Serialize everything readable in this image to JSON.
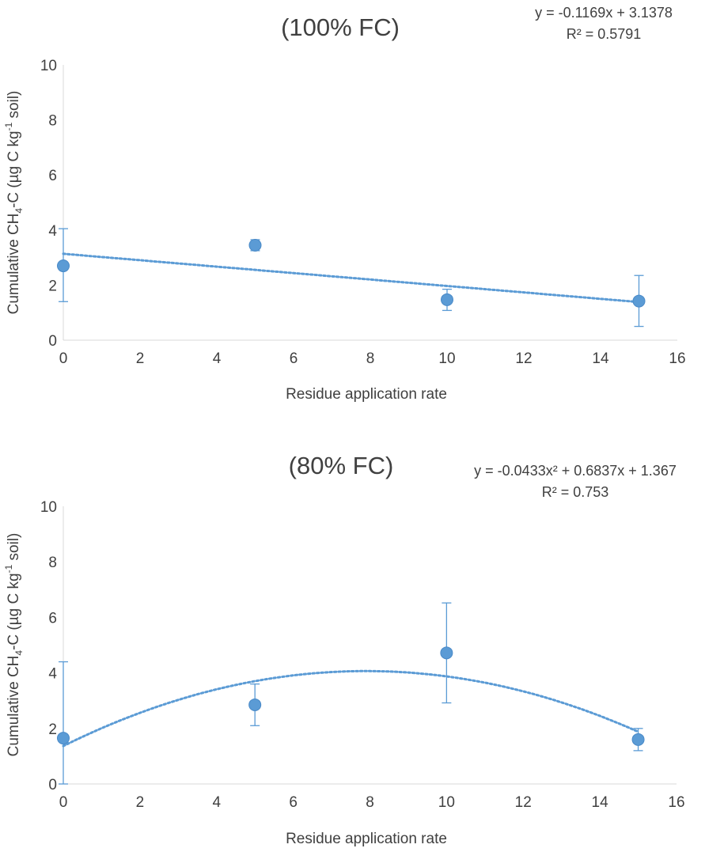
{
  "chart_data": [
    {
      "type": "scatter",
      "title": "(100% FC)",
      "xlabel": "Residue application rate",
      "ylabel_main": "Cumulative CH",
      "ylabel_sub": "4",
      "ylabel_rest": "-C (µg C kg",
      "ylabel_sup": "-1",
      "ylabel_end": " soil)",
      "xlim": [
        0,
        16
      ],
      "ylim": [
        0,
        10
      ],
      "xticks": [
        0,
        2,
        4,
        6,
        8,
        10,
        12,
        14,
        16
      ],
      "yticks": [
        0,
        2,
        4,
        6,
        8,
        10
      ],
      "grid": false,
      "color": "#5B9BD5",
      "points": [
        {
          "x": 0,
          "y": 2.7,
          "err_low": 1.4,
          "err_high": 4.05
        },
        {
          "x": 5,
          "y": 3.45,
          "err_low": 3.25,
          "err_high": 3.65
        },
        {
          "x": 10,
          "y": 1.47,
          "err_low": 1.08,
          "err_high": 1.85
        },
        {
          "x": 15,
          "y": 1.42,
          "err_low": 0.5,
          "err_high": 2.35
        }
      ],
      "trendline": {
        "type": "linear",
        "coefficients": [
          -0.1169,
          3.1378
        ],
        "x_range": [
          0,
          15
        ]
      },
      "equation": "y = -0.1169x + 3.1378",
      "r2_text": "R² = 0.5791"
    },
    {
      "type": "scatter",
      "title": "(80% FC)",
      "xlabel": "Residue application rate",
      "ylabel_main": "Cumulative CH",
      "ylabel_sub": "4",
      "ylabel_rest": "-C (µg C kg",
      "ylabel_sup": "-1",
      "ylabel_end": " soil)",
      "xlim": [
        0,
        16
      ],
      "ylim": [
        0,
        10
      ],
      "xticks": [
        0,
        2,
        4,
        6,
        8,
        10,
        12,
        14,
        16
      ],
      "yticks": [
        0,
        2,
        4,
        6,
        8,
        10
      ],
      "grid": false,
      "color": "#5B9BD5",
      "points": [
        {
          "x": 0,
          "y": 1.65,
          "err_low": 0,
          "err_high": 4.4
        },
        {
          "x": 5,
          "y": 2.85,
          "err_low": 2.1,
          "err_high": 3.6
        },
        {
          "x": 10,
          "y": 4.72,
          "err_low": 2.92,
          "err_high": 6.52
        },
        {
          "x": 15,
          "y": 1.6,
          "err_low": 1.2,
          "err_high": 2.0
        }
      ],
      "trendline": {
        "type": "polynomial",
        "coefficients": [
          -0.0433,
          0.6837,
          1.367
        ],
        "x_range": [
          0,
          15
        ]
      },
      "equation": "y = -0.0433x² + 0.6837x + 1.367",
      "r2_text": "R² = 0.753"
    }
  ]
}
